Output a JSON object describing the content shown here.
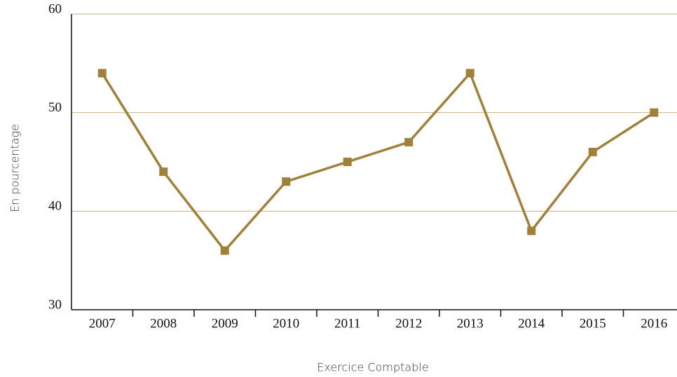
{
  "chart_data": {
    "type": "line",
    "categories": [
      "2007",
      "2008",
      "2009",
      "2010",
      "2011",
      "2012",
      "2013",
      "2014",
      "2015",
      "2016"
    ],
    "series": [
      {
        "name": "En pourcentage",
        "color": "#a0803a",
        "values": [
          54,
          44,
          36,
          43,
          45,
          47,
          54,
          38,
          46,
          50
        ]
      }
    ],
    "ylim": [
      30,
      60
    ],
    "yticks": [
      30,
      40,
      50,
      60
    ],
    "grid": true,
    "grid_color": "#c9b37f",
    "x_label": "Exercice Comptable",
    "y_label": "En pourcentage"
  }
}
